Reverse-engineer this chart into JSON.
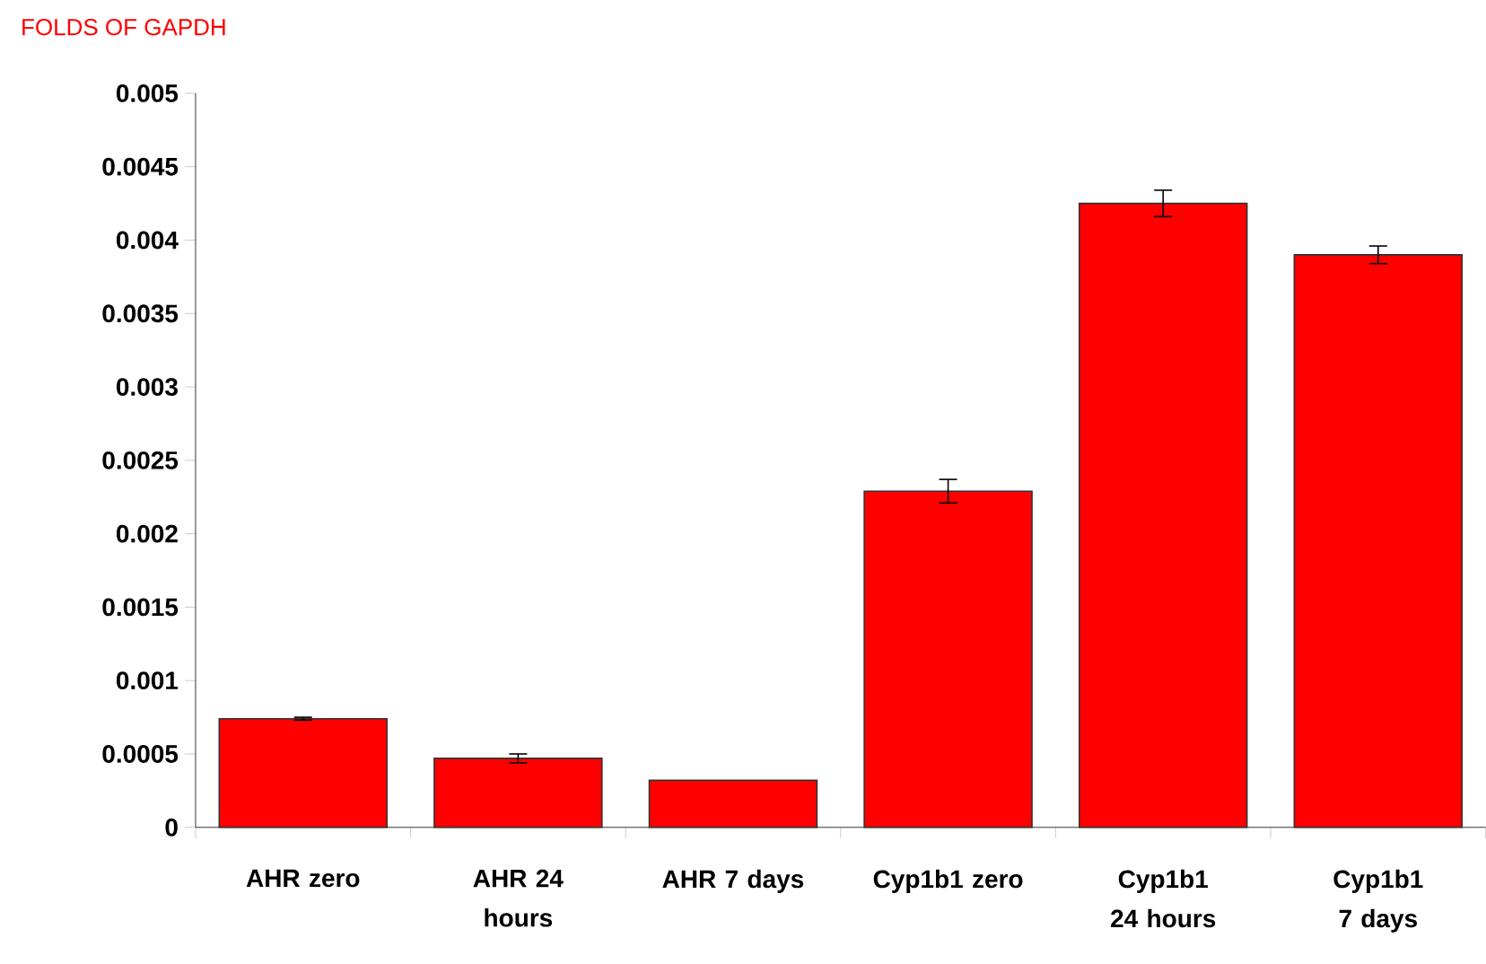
{
  "chart_data": {
    "type": "bar",
    "ylabel": "FOLDS OF GAPDH",
    "categories": [
      "AHR zero",
      "AHR 24 hours",
      "AHR 7 days",
      "Cyp1b1 zero",
      "Cyp1b1 24 hours",
      "Cyp1b1 7 days"
    ],
    "values": [
      0.00074,
      0.00047,
      0.00032,
      0.00229,
      0.00425,
      0.0039
    ],
    "errors": [
      1e-05,
      3e-05,
      null,
      8e-05,
      9e-05,
      6e-05
    ],
    "color": "#ff0000",
    "ylim": [
      0,
      0.005
    ],
    "yticks": [
      0,
      0.0005,
      0.001,
      0.0015,
      0.002,
      0.0025,
      0.003,
      0.0035,
      0.004,
      0.0045,
      0.005
    ],
    "grid": false
  }
}
